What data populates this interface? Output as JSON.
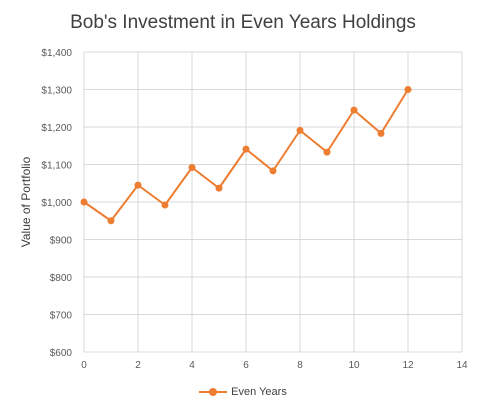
{
  "chart_data": {
    "type": "line",
    "title": "Bob's Investment in Even Years Holdings",
    "xlabel": "",
    "ylabel": "Value of Portfolio",
    "xlim": [
      0,
      14
    ],
    "ylim": [
      600,
      1400
    ],
    "xticks": [
      "0",
      "2",
      "4",
      "6",
      "8",
      "10",
      "12",
      "14"
    ],
    "yticks": [
      "$600",
      "$700",
      "$800",
      "$900",
      "$1,000",
      "$1,100",
      "$1,200",
      "$1,300",
      "$1,400"
    ],
    "grid": "horizontal",
    "legend_position": "bottom",
    "series": [
      {
        "name": "Even Years",
        "color": "#ED7D31",
        "x": [
          0,
          1,
          2,
          3,
          4,
          5,
          6,
          7,
          8,
          9,
          10,
          11,
          12
        ],
        "y": [
          1000,
          950,
          1045,
          992,
          1092,
          1037,
          1141,
          1083,
          1191,
          1133,
          1245,
          1183,
          1300
        ]
      }
    ]
  }
}
